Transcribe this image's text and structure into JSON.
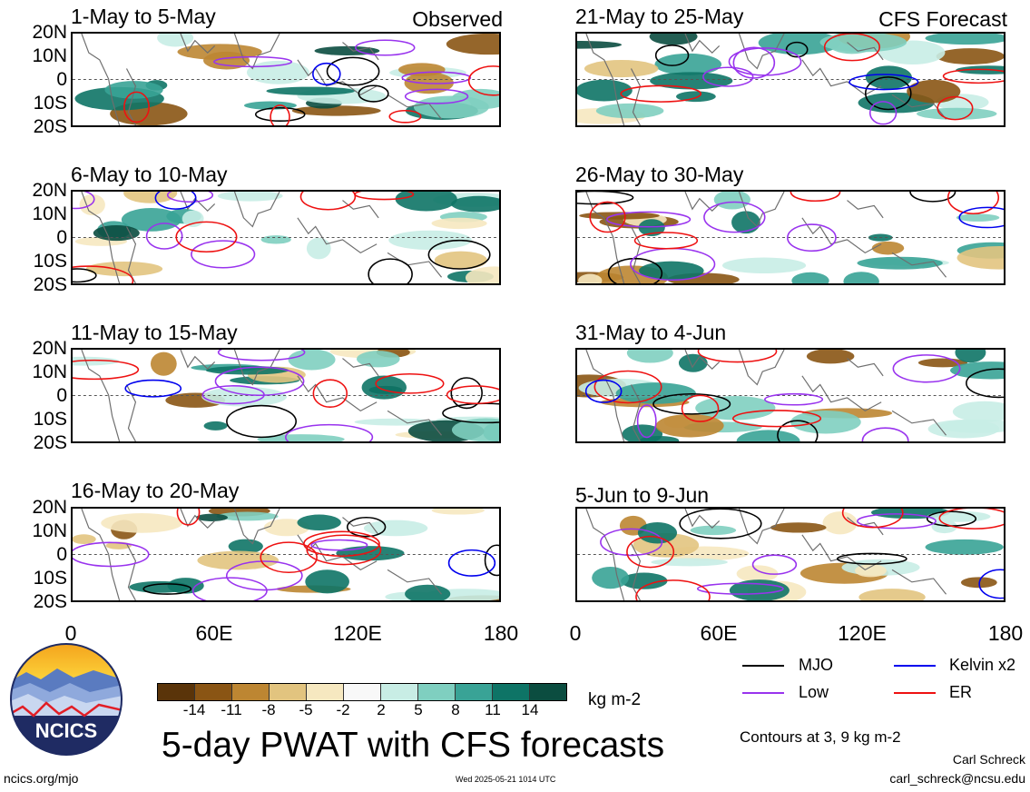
{
  "panels": [
    {
      "title": "1-May to 5-May",
      "tag": "Observed"
    },
    {
      "title": "21-May to 25-May",
      "tag": "CFS Forecast"
    },
    {
      "title": "6-May to 10-May",
      "tag": ""
    },
    {
      "title": "26-May to 30-May",
      "tag": ""
    },
    {
      "title": "11-May to 15-May",
      "tag": ""
    },
    {
      "title": "31-May to 4-Jun",
      "tag": ""
    },
    {
      "title": "16-May to 20-May",
      "tag": ""
    },
    {
      "title": "5-Jun to 9-Jun",
      "tag": ""
    }
  ],
  "axes": {
    "lat_ticks": [
      "20N",
      "10N",
      "0",
      "10S",
      "20S"
    ],
    "lon_ticks": [
      "0",
      "60E",
      "120E",
      "180"
    ]
  },
  "colorbar": {
    "colors": [
      "#5a3409",
      "#8a5514",
      "#bd8632",
      "#e2c47f",
      "#f6e8c0",
      "#f8f8f8",
      "#c8ede5",
      "#7fcfc0",
      "#39a396",
      "#0e7466",
      "#0b4d40"
    ],
    "ticks": [
      "-14",
      "-11",
      "-8",
      "-5",
      "-2",
      "2",
      "5",
      "8",
      "11",
      "14"
    ],
    "unit": "kg m-2"
  },
  "title": "5-day PWAT with CFS forecasts",
  "legend": [
    {
      "label": "MJO",
      "color": "#000000"
    },
    {
      "label": "Kelvin x2",
      "color": "#0000ee"
    },
    {
      "label": "Low",
      "color": "#9933ee"
    },
    {
      "label": "ER",
      "color": "#ee1111"
    }
  ],
  "contour_note": "Contours at 3, 9 kg m-2",
  "author": "Carl Schreck",
  "email": "carl_schreck@ncsu.edu",
  "site": "ncics.org/mjo",
  "timestamp": "Wed 2025-05-21 1014 UTC",
  "logo_text": "NCICS",
  "chart_data": {
    "type": "heatmap",
    "variable": "5-day PWAT",
    "unit": "kg m-2",
    "x_range": [
      0,
      180
    ],
    "y_range": [
      -20,
      20
    ],
    "x_ticks": [
      "0",
      "60E",
      "120E",
      "180"
    ],
    "y_ticks": [
      "20N",
      "10N",
      "0",
      "10S",
      "20S"
    ],
    "color_levels": [
      -14,
      -11,
      -8,
      -5,
      -2,
      2,
      5,
      8,
      11,
      14
    ],
    "contour_levels": [
      3,
      9
    ],
    "panels": [
      {
        "period": "1-May to 5-May",
        "source": "Observed"
      },
      {
        "period": "6-May to 10-May",
        "source": "Observed"
      },
      {
        "period": "11-May to 15-May",
        "source": "Observed"
      },
      {
        "period": "16-May to 20-May",
        "source": "Observed"
      },
      {
        "period": "21-May to 25-May",
        "source": "CFS Forecast"
      },
      {
        "period": "26-May to 30-May",
        "source": "CFS Forecast"
      },
      {
        "period": "31-May to 4-Jun",
        "source": "CFS Forecast"
      },
      {
        "period": "5-Jun to 9-Jun",
        "source": "CFS Forecast"
      }
    ]
  }
}
